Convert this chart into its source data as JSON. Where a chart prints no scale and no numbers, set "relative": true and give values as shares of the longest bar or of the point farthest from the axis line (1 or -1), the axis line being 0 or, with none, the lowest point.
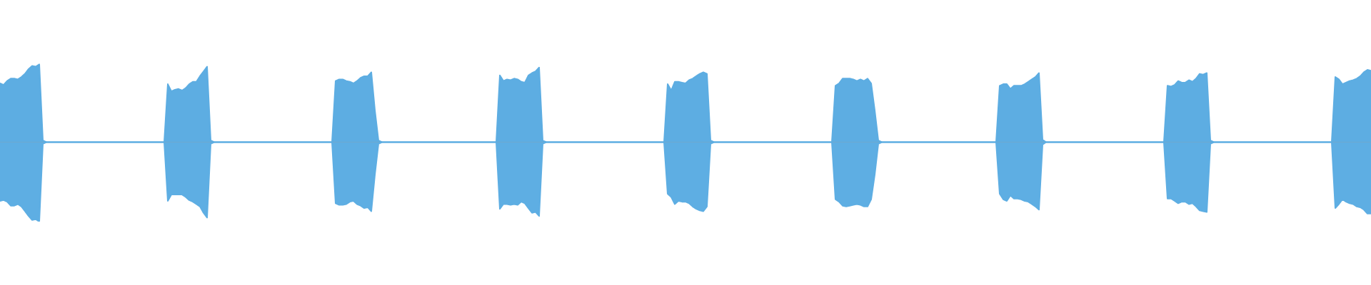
{
  "chart_data": {
    "type": "area",
    "relative": true,
    "tick_labels": false,
    "categories": [
      null,
      null,
      null,
      null,
      null,
      null,
      null,
      null,
      null,
      null,
      null,
      null,
      null,
      null,
      null,
      null,
      null,
      null,
      null,
      null,
      null,
      null,
      null,
      null,
      null,
      null,
      null,
      null,
      null,
      null,
      null,
      null,
      null,
      null,
      null,
      null,
      null,
      null,
      null,
      null,
      null,
      null,
      null,
      null,
      null,
      null,
      null,
      null,
      null,
      null,
      null,
      null,
      null,
      null,
      null,
      null,
      null,
      null,
      null,
      null,
      null,
      null,
      null,
      null,
      null,
      null,
      null,
      null,
      null,
      null,
      null,
      null,
      null,
      null,
      null,
      null,
      null,
      null,
      null,
      null,
      null,
      null,
      null,
      null,
      null,
      null,
      null,
      null,
      null,
      null,
      null,
      null,
      null,
      null,
      null,
      null,
      null,
      null,
      null,
      null,
      null,
      null,
      null,
      null,
      null,
      null,
      null,
      null,
      null,
      null,
      null,
      null,
      null,
      null,
      null,
      null,
      null,
      null,
      null,
      null,
      null,
      null,
      null,
      null,
      null,
      null,
      null,
      null,
      null,
      null,
      null,
      null,
      null,
      null,
      null,
      null,
      null,
      null,
      null,
      null,
      null,
      null,
      null,
      null,
      null,
      null,
      null,
      null,
      null,
      null,
      null,
      null,
      null,
      null,
      null,
      null,
      null,
      null,
      null,
      null,
      null,
      null,
      null,
      null,
      null,
      null,
      null,
      null,
      null,
      null,
      null,
      null,
      null,
      null,
      null,
      null,
      null,
      null,
      null,
      null,
      null,
      null,
      null,
      null,
      null,
      null,
      null,
      null,
      null,
      null,
      null,
      null,
      null,
      null,
      null,
      null,
      null,
      null,
      null,
      null,
      null,
      null,
      null,
      null,
      null,
      null,
      null,
      null,
      null,
      null,
      null,
      null,
      null,
      null,
      null,
      null,
      null,
      null,
      null,
      null,
      null,
      null,
      null,
      null,
      null,
      null,
      null,
      null,
      null,
      null,
      null,
      null,
      null,
      null,
      null,
      null,
      null,
      null,
      null,
      null,
      null,
      null,
      null,
      null,
      null,
      null,
      null,
      null,
      null,
      null,
      null,
      null,
      null,
      null,
      null,
      null,
      null,
      null,
      null,
      null,
      null,
      null,
      null,
      null,
      null,
      null,
      null,
      null,
      null,
      null,
      null,
      null,
      null,
      null,
      null,
      null,
      null,
      null,
      null,
      null,
      null,
      null,
      null,
      null,
      null,
      null,
      null,
      null,
      null,
      null,
      null,
      null,
      null,
      null,
      null,
      null,
      null,
      null,
      null,
      null,
      null,
      null,
      null,
      null,
      null,
      null,
      null,
      null,
      null,
      null,
      null,
      null,
      null,
      null,
      null,
      null,
      null,
      null,
      null,
      null,
      null,
      null,
      null,
      null,
      null,
      null,
      null,
      null,
      null,
      null,
      null,
      null,
      null,
      null,
      null,
      null,
      null,
      null,
      null,
      null,
      null,
      null,
      null,
      null,
      null,
      null,
      null,
      null,
      null,
      null,
      null,
      null,
      null,
      null,
      null,
      null,
      null,
      null,
      null,
      null,
      null,
      null,
      null,
      null,
      null,
      null,
      null,
      null,
      null,
      null,
      null,
      null,
      null,
      null,
      null,
      null,
      null,
      null,
      null,
      null,
      null,
      null,
      null,
      null,
      null
    ],
    "series": [
      {
        "color": "#5dade2",
        "values": [
          0.74,
          0.72,
          0.77,
          0.8,
          0.8,
          0.79,
          0.82,
          0.86,
          0.92,
          0.96,
          0.95,
          0.98,
          0.02,
          0,
          0,
          0,
          0,
          0,
          0,
          0,
          0,
          0,
          0,
          0,
          0,
          0,
          0,
          0,
          0,
          0,
          0,
          0,
          0,
          0,
          0,
          0,
          0,
          0,
          0,
          0,
          0,
          0,
          0,
          0,
          0,
          0,
          0,
          0.73,
          0.64,
          0.66,
          0.67,
          0.65,
          0.68,
          0.73,
          0.76,
          0.76,
          0.83,
          0.89,
          0.95,
          0.02,
          0,
          0,
          0,
          0,
          0,
          0,
          0,
          0,
          0,
          0,
          0,
          0,
          0,
          0,
          0,
          0,
          0,
          0,
          0,
          0,
          0,
          0,
          0,
          0,
          0,
          0,
          0,
          0,
          0,
          0,
          0,
          0,
          0,
          0,
          0.77,
          0.79,
          0.79,
          0.77,
          0.76,
          0.74,
          0.77,
          0.81,
          0.83,
          0.83,
          0.88,
          0.4,
          0.02,
          0,
          0,
          0,
          0,
          0,
          0,
          0,
          0,
          0,
          0,
          0,
          0,
          0,
          0,
          0,
          0,
          0,
          0,
          0,
          0,
          0,
          0,
          0,
          0,
          0,
          0,
          0,
          0,
          0,
          0,
          0,
          0,
          0,
          0.84,
          0.77,
          0.79,
          0.78,
          0.8,
          0.79,
          0.76,
          0.75,
          0.84,
          0.87,
          0.89,
          0.94,
          0.02,
          0,
          0,
          0,
          0,
          0,
          0,
          0,
          0,
          0,
          0,
          0,
          0,
          0,
          0,
          0,
          0,
          0,
          0,
          0,
          0,
          0,
          0,
          0,
          0,
          0,
          0,
          0,
          0,
          0,
          0,
          0,
          0,
          0,
          0,
          0.73,
          0.65,
          0.76,
          0.76,
          0.75,
          0.74,
          0.78,
          0.8,
          0.83,
          0.86,
          0.88,
          0.86,
          0.02,
          0,
          0,
          0,
          0,
          0,
          0,
          0,
          0,
          0,
          0,
          0,
          0,
          0,
          0,
          0,
          0,
          0,
          0,
          0,
          0,
          0,
          0,
          0,
          0,
          0,
          0,
          0,
          0,
          0,
          0,
          0,
          0,
          0,
          0,
          0.71,
          0.74,
          0.8,
          0.8,
          0.8,
          0.79,
          0.77,
          0.79,
          0.77,
          0.8,
          0.74,
          0.4,
          0.02,
          0,
          0,
          0,
          0,
          0,
          0,
          0,
          0,
          0,
          0,
          0,
          0,
          0,
          0,
          0,
          0,
          0,
          0,
          0,
          0,
          0,
          0,
          0,
          0,
          0,
          0,
          0,
          0,
          0,
          0,
          0,
          0,
          0,
          0.71,
          0.73,
          0.73,
          0.67,
          0.71,
          0.71,
          0.71,
          0.73,
          0.76,
          0.79,
          0.82,
          0.87,
          0.03,
          0,
          0,
          0,
          0,
          0,
          0,
          0,
          0,
          0,
          0,
          0,
          0,
          0,
          0,
          0,
          0,
          0,
          0,
          0,
          0,
          0,
          0,
          0,
          0,
          0,
          0,
          0,
          0,
          0,
          0,
          0,
          0,
          0,
          0,
          0.71,
          0.7,
          0.72,
          0.77,
          0.75,
          0.75,
          0.78,
          0.76,
          0.8,
          0.86,
          0.85,
          0.87,
          0.02,
          0,
          0,
          0,
          0,
          0,
          0,
          0,
          0,
          0,
          0,
          0,
          0,
          0,
          0,
          0,
          0,
          0,
          0,
          0,
          0,
          0,
          0,
          0,
          0,
          0,
          0,
          0,
          0,
          0,
          0,
          0,
          0,
          0,
          0,
          0.82,
          0.79,
          0.73,
          0.75,
          0.77,
          0.78,
          0.8,
          0.83,
          0.88,
          0.91,
          0.9
        ]
      },
      {
        "color": "#5eaee3",
        "values": [
          -0.74,
          -0.73,
          -0.75,
          -0.8,
          -0.8,
          -0.78,
          -0.81,
          -0.87,
          -0.93,
          -0.98,
          -0.97,
          -1,
          -0.02,
          0,
          0,
          0,
          0,
          0,
          0,
          0,
          0,
          0,
          0,
          0,
          0,
          0,
          0,
          0,
          0,
          0,
          0,
          0,
          0,
          0,
          0,
          0,
          0,
          0,
          0,
          0,
          0,
          0,
          0,
          0,
          0,
          0,
          0,
          -0.74,
          -0.66,
          -0.66,
          -0.66,
          -0.66,
          -0.69,
          -0.73,
          -0.75,
          -0.78,
          -0.81,
          -0.89,
          -0.95,
          -0.02,
          0,
          0,
          0,
          0,
          0,
          0,
          0,
          0,
          0,
          0,
          0,
          0,
          0,
          0,
          0,
          0,
          0,
          0,
          0,
          0,
          0,
          0,
          0,
          0,
          0,
          0,
          0,
          0,
          0,
          0,
          0,
          0,
          0,
          0,
          -0.77,
          -0.79,
          -0.79,
          -0.78,
          -0.75,
          -0.74,
          -0.78,
          -0.8,
          -0.83,
          -0.82,
          -0.87,
          -0.41,
          -0.02,
          0,
          0,
          0,
          0,
          0,
          0,
          0,
          0,
          0,
          0,
          0,
          0,
          0,
          0,
          0,
          0,
          0,
          0,
          0,
          0,
          0,
          0,
          0,
          0,
          0,
          0,
          0,
          0,
          0,
          0,
          0,
          0,
          0,
          -0.84,
          -0.78,
          -0.78,
          -0.79,
          -0.78,
          -0.79,
          -0.75,
          -0.77,
          -0.83,
          -0.89,
          -0.88,
          -0.93,
          -0.02,
          0,
          0,
          0,
          0,
          0,
          0,
          0,
          0,
          0,
          0,
          0,
          0,
          0,
          0,
          0,
          0,
          0,
          0,
          0,
          0,
          0,
          0,
          0,
          0,
          0,
          0,
          0,
          0,
          0,
          0,
          0,
          0,
          0,
          0,
          -0.65,
          -0.69,
          -0.78,
          -0.74,
          -0.75,
          -0.75,
          -0.77,
          -0.81,
          -0.84,
          -0.86,
          -0.87,
          -0.81,
          -0.02,
          0,
          0,
          0,
          0,
          0,
          0,
          0,
          0,
          0,
          0,
          0,
          0,
          0,
          0,
          0,
          0,
          0,
          0,
          0,
          0,
          0,
          0,
          0,
          0,
          0,
          0,
          0,
          0,
          0,
          0,
          0,
          0,
          0,
          0,
          -0.72,
          -0.75,
          -0.8,
          -0.81,
          -0.8,
          -0.79,
          -0.78,
          -0.79,
          -0.81,
          -0.81,
          -0.72,
          -0.41,
          -0.02,
          0,
          0,
          0,
          0,
          0,
          0,
          0,
          0,
          0,
          0,
          0,
          0,
          0,
          0,
          0,
          0,
          0,
          0,
          0,
          0,
          0,
          0,
          0,
          0,
          0,
          0,
          0,
          0,
          0,
          0,
          0,
          0,
          0,
          -0.65,
          -0.72,
          -0.74,
          -0.67,
          -0.71,
          -0.71,
          -0.72,
          -0.74,
          -0.75,
          -0.78,
          -0.81,
          -0.85,
          -0.03,
          0,
          0,
          0,
          0,
          0,
          0,
          0,
          0,
          0,
          0,
          0,
          0,
          0,
          0,
          0,
          0,
          0,
          0,
          0,
          0,
          0,
          0,
          0,
          0,
          0,
          0,
          0,
          0,
          0,
          0,
          0,
          0,
          0,
          0,
          -0.71,
          -0.71,
          -0.74,
          -0.77,
          -0.75,
          -0.75,
          -0.78,
          -0.77,
          -0.81,
          -0.86,
          -0.87,
          -0.88,
          -0.02,
          0,
          0,
          0,
          0,
          0,
          0,
          0,
          0,
          0,
          0,
          0,
          0,
          0,
          0,
          0,
          0,
          0,
          0,
          0,
          0,
          0,
          0,
          0,
          0,
          0,
          0,
          0,
          0,
          0,
          0,
          0,
          0,
          0,
          0,
          -0.83,
          -0.78,
          -0.72,
          -0.75,
          -0.77,
          -0.78,
          -0.81,
          -0.82,
          -0.85,
          -0.9,
          -0.9
        ]
      }
    ]
  }
}
